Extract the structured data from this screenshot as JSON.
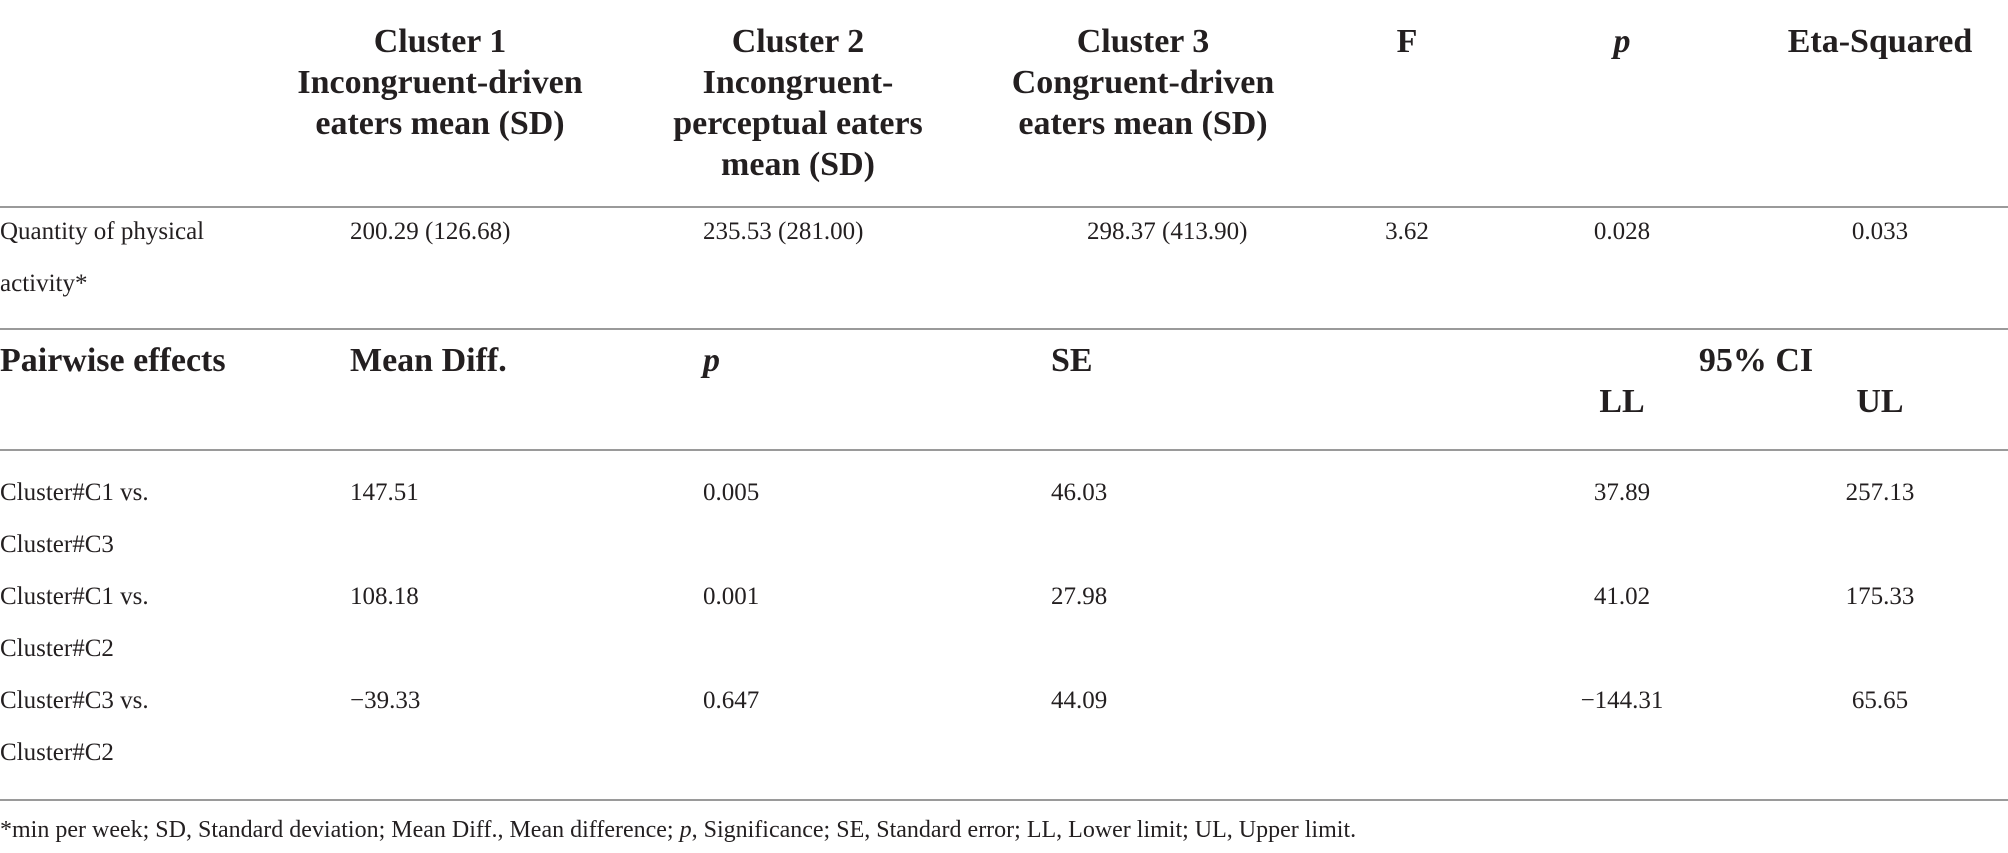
{
  "header": {
    "cluster1": [
      "Cluster 1",
      "Incongruent-driven",
      "eaters mean (SD)"
    ],
    "cluster2": [
      "Cluster 2",
      "Incongruent-",
      "perceptual eaters",
      "mean (SD)"
    ],
    "cluster3": [
      "Cluster 3",
      "Congruent-driven",
      "eaters mean (SD)"
    ],
    "f": "F",
    "p": "p",
    "eta": "Eta-Squared"
  },
  "activity_row": {
    "label": [
      "Quantity of physical",
      "activity*"
    ],
    "c1": "200.29 (126.68)",
    "c2": "235.53 (281.00)",
    "c3": "298.37 (413.90)",
    "f": "3.62",
    "p": "0.028",
    "eta": "0.033"
  },
  "pairwise_header": {
    "label": "Pairwise effects",
    "mean_diff": "Mean Diff.",
    "p": "p",
    "se": "SE",
    "ci": "95% CI",
    "ll": "LL",
    "ul": "UL"
  },
  "pairwise_rows": [
    {
      "label": [
        "Cluster#C1 vs.",
        "Cluster#C3"
      ],
      "mean_diff": "147.51",
      "p": "0.005",
      "se": "46.03",
      "ll": "37.89",
      "ul": "257.13"
    },
    {
      "label": [
        "Cluster#C1 vs.",
        "Cluster#C2"
      ],
      "mean_diff": "108.18",
      "p": "0.001",
      "se": "27.98",
      "ll": "41.02",
      "ul": "175.33"
    },
    {
      "label": [
        "Cluster#C3 vs.",
        "Cluster#C2"
      ],
      "mean_diff": "−39.33",
      "p": "0.647",
      "se": "44.09",
      "ll": "−144.31",
      "ul": "65.65"
    }
  ],
  "footnote": {
    "part1": "*min per week; SD, Standard deviation; Mean Diff., Mean difference; ",
    "p": "p",
    "part2": ", Significance; SE, Standard error; LL, Lower limit; UL, Upper limit."
  }
}
